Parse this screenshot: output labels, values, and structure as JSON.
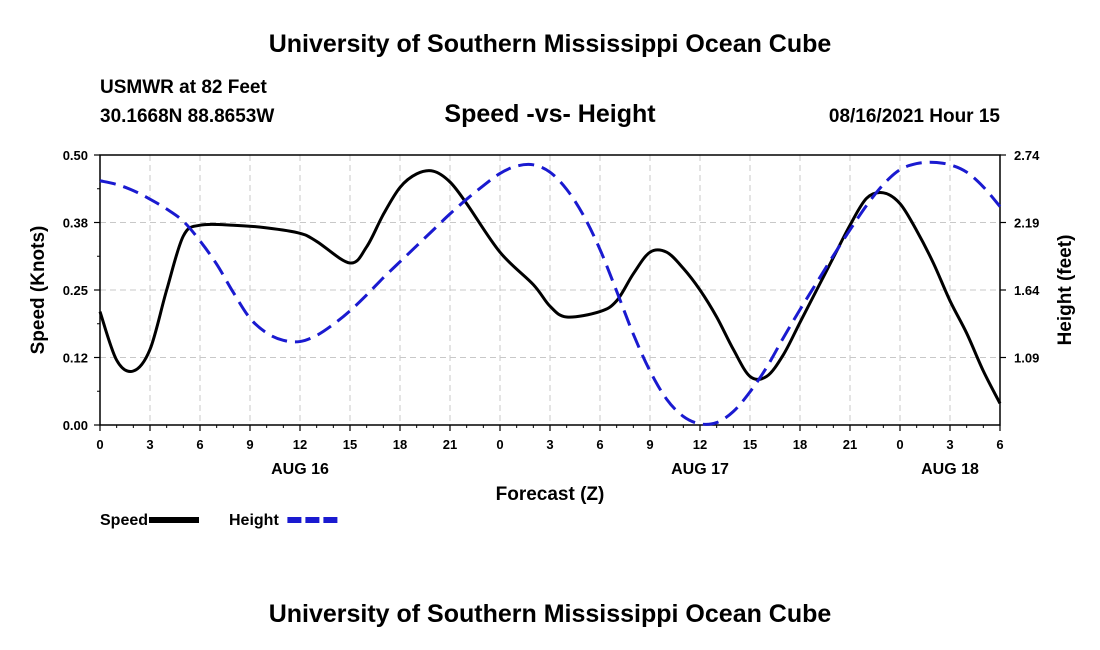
{
  "header": {
    "title": "University of Southern Mississippi Ocean Cube",
    "station": "USMWR at 82 Feet",
    "coords": "30.1668N  88.8653W",
    "chart_title": "Speed -vs- Height",
    "timestamp": "08/16/2021 Hour 15"
  },
  "footer": {
    "title": "University of Southern Mississippi Ocean Cube"
  },
  "colors": {
    "speed": "#000000",
    "height": "#1a1ad0",
    "grid": "#c8c8c8"
  },
  "chart_data": {
    "type": "line",
    "title": "Speed -vs- Height",
    "xlabel": "Forecast (Z)",
    "ylabel": "Speed (Knots)",
    "y2label": "Height (feet)",
    "xlim": [
      0,
      54
    ],
    "ylim": [
      0.0,
      0.5
    ],
    "y2lim": [
      0.54,
      2.74
    ],
    "x_ticks": [
      0,
      3,
      6,
      9,
      12,
      15,
      18,
      21,
      24,
      27,
      30,
      33,
      36,
      39,
      42,
      45,
      48,
      51,
      54
    ],
    "x_tick_labels": [
      "0",
      "3",
      "6",
      "9",
      "12",
      "15",
      "18",
      "21",
      "0",
      "3",
      "6",
      "9",
      "12",
      "15",
      "18",
      "21",
      "0",
      "3",
      "6"
    ],
    "y_ticks": [
      0.0,
      0.125,
      0.25,
      0.375,
      0.5
    ],
    "y_tick_labels": [
      "0.00",
      "0.12",
      "0.25",
      "0.38",
      "0.50"
    ],
    "y2_ticks": [
      1.09,
      1.64,
      2.19,
      2.74
    ],
    "y2_tick_labels": [
      "1.09",
      "1.64",
      "2.19",
      "2.74"
    ],
    "date_labels": [
      {
        "x": 12,
        "text": "AUG 16"
      },
      {
        "x": 36,
        "text": "AUG 17"
      },
      {
        "x": 51,
        "text": "AUG 18"
      }
    ],
    "legend": [
      {
        "name": "Speed",
        "style": "solid"
      },
      {
        "name": "Height",
        "style": "dashed"
      }
    ],
    "series": [
      {
        "name": "Speed",
        "axis": "left",
        "x": [
          0,
          1,
          2,
          3,
          4,
          5,
          6,
          8,
          10,
          12,
          13,
          15,
          16,
          17,
          18,
          19,
          20,
          21,
          22,
          24,
          26,
          27,
          28,
          30,
          31,
          32,
          33,
          34,
          35,
          36,
          37,
          38,
          39,
          40,
          41,
          42,
          43,
          44,
          45,
          46,
          47,
          48,
          49,
          50,
          51,
          52,
          53,
          54
        ],
        "values": [
          0.21,
          0.12,
          0.1,
          0.14,
          0.25,
          0.35,
          0.37,
          0.37,
          0.365,
          0.355,
          0.34,
          0.3,
          0.33,
          0.39,
          0.44,
          0.465,
          0.47,
          0.45,
          0.41,
          0.32,
          0.26,
          0.22,
          0.2,
          0.21,
          0.23,
          0.28,
          0.32,
          0.32,
          0.29,
          0.25,
          0.2,
          0.14,
          0.09,
          0.09,
          0.13,
          0.19,
          0.25,
          0.31,
          0.37,
          0.42,
          0.43,
          0.41,
          0.36,
          0.3,
          0.23,
          0.17,
          0.1,
          0.04
        ]
      },
      {
        "name": "Height",
        "axis": "right",
        "x": [
          0,
          1,
          2,
          3,
          4,
          5,
          6,
          7,
          8,
          9,
          10,
          11,
          12,
          13,
          14,
          15,
          16,
          17,
          18,
          19,
          20,
          21,
          22,
          23,
          24,
          25,
          26,
          27,
          28,
          29,
          30,
          31,
          32,
          33,
          34,
          35,
          36,
          37,
          38,
          39,
          40,
          41,
          42,
          43,
          44,
          45,
          46,
          47,
          48,
          49,
          50,
          51,
          52,
          53,
          54
        ],
        "values": [
          2.53,
          2.5,
          2.45,
          2.38,
          2.3,
          2.2,
          2.04,
          1.85,
          1.62,
          1.41,
          1.29,
          1.23,
          1.22,
          1.27,
          1.36,
          1.47,
          1.6,
          1.74,
          1.87,
          2.0,
          2.13,
          2.26,
          2.38,
          2.49,
          2.59,
          2.65,
          2.66,
          2.6,
          2.46,
          2.25,
          1.97,
          1.63,
          1.28,
          0.98,
          0.75,
          0.61,
          0.55,
          0.56,
          0.65,
          0.81,
          1.01,
          1.25,
          1.48,
          1.7,
          1.92,
          2.13,
          2.33,
          2.5,
          2.62,
          2.67,
          2.68,
          2.66,
          2.6,
          2.48,
          2.32
        ]
      }
    ]
  }
}
